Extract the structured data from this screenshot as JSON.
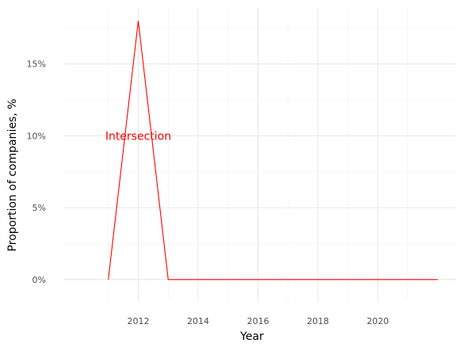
{
  "chart_data": {
    "type": "line",
    "title": "",
    "xlabel": "Year",
    "ylabel": "Proportion of companies, %",
    "x_ticks": [
      2012,
      2014,
      2016,
      2018,
      2020
    ],
    "x_tick_labels": [
      "2012",
      "2014",
      "2016",
      "2018",
      "2020"
    ],
    "y_ticks": [
      0,
      5,
      10,
      15
    ],
    "y_tick_labels": [
      "0%",
      "5%",
      "10%",
      "15%"
    ],
    "xlim": [
      2009.5,
      2022.6
    ],
    "ylim": [
      -1.5,
      18.9
    ],
    "grid": true,
    "series": [
      {
        "color": "#ff0000",
        "x": [
          2011,
          2012,
          2013,
          2014,
          2015,
          2016,
          2017,
          2018,
          2019,
          2020,
          2021,
          2022
        ],
        "y": [
          0,
          18,
          0,
          0,
          0,
          0,
          0,
          0,
          0,
          0,
          0,
          0
        ]
      }
    ],
    "annotations": [
      {
        "text": "Intersection",
        "x": 2012,
        "y": 10,
        "color": "#ff0000"
      }
    ]
  }
}
